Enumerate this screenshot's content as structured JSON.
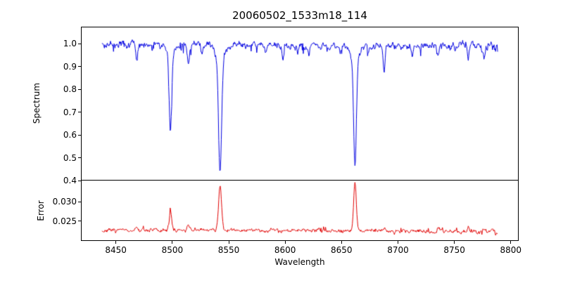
{
  "chart_data": [
    {
      "type": "line",
      "panel": "spectrum",
      "title": "20060502_1533m18_114",
      "ylabel": "Spectrum",
      "color": "#0000e0",
      "xlim": [
        8419,
        8807
      ],
      "ylim": [
        0.4,
        1.074
      ],
      "yticks": [
        1.0,
        0.9,
        0.8,
        0.7,
        0.6,
        0.5,
        0.4
      ],
      "ytick_labels": [
        "1.0",
        "0.9",
        "0.8",
        "0.7",
        "0.6",
        "0.5",
        "0.4"
      ],
      "x_start": 8437,
      "x_end": 8789,
      "x_step": 0.45,
      "continuum": 0.995,
      "noise_sigma": 0.0065,
      "grid": false,
      "legend": false,
      "absorption_lines": [
        {
          "center": 8498.0,
          "depth": 0.33,
          "width": 1.1
        },
        {
          "center": 8498.0,
          "depth": 0.05,
          "width": 3.2
        },
        {
          "center": 8542.1,
          "depth": 0.5,
          "width": 1.3
        },
        {
          "center": 8542.1,
          "depth": 0.07,
          "width": 4.0
        },
        {
          "center": 8662.1,
          "depth": 0.47,
          "width": 1.2
        },
        {
          "center": 8662.1,
          "depth": 0.06,
          "width": 3.6
        },
        {
          "center": 8433,
          "depth": 0.035,
          "width": 0.8
        },
        {
          "center": 8468,
          "depth": 0.07,
          "width": 0.9
        },
        {
          "center": 8482,
          "depth": 0.035,
          "width": 0.7
        },
        {
          "center": 8514,
          "depth": 0.095,
          "width": 1.0
        },
        {
          "center": 8526,
          "depth": 0.045,
          "width": 0.8
        },
        {
          "center": 8583,
          "depth": 0.035,
          "width": 0.7
        },
        {
          "center": 8598,
          "depth": 0.045,
          "width": 0.8
        },
        {
          "center": 8611,
          "depth": 0.03,
          "width": 0.7
        },
        {
          "center": 8621,
          "depth": 0.035,
          "width": 0.7
        },
        {
          "center": 8649,
          "depth": 0.03,
          "width": 0.7
        },
        {
          "center": 8674,
          "depth": 0.03,
          "width": 0.7
        },
        {
          "center": 8688,
          "depth": 0.105,
          "width": 1.0
        },
        {
          "center": 8713,
          "depth": 0.05,
          "width": 0.8
        },
        {
          "center": 8736,
          "depth": 0.055,
          "width": 0.8
        },
        {
          "center": 8751,
          "depth": 0.04,
          "width": 0.7
        },
        {
          "center": 8763,
          "depth": 0.06,
          "width": 0.8
        },
        {
          "center": 8777,
          "depth": 0.05,
          "width": 0.8
        }
      ]
    },
    {
      "type": "line",
      "panel": "error",
      "ylabel": "Error",
      "xlabel": "Wavelength",
      "color": "#e00000",
      "xlim": [
        8419,
        8807
      ],
      "ylim": [
        0.0198,
        0.0356
      ],
      "yticks": [
        0.03,
        0.025
      ],
      "ytick_labels": [
        "0.030",
        "0.025"
      ],
      "xticks": [
        8450,
        8500,
        8550,
        8600,
        8650,
        8700,
        8750,
        8800
      ],
      "xtick_labels": [
        "8450",
        "8500",
        "8550",
        "8600",
        "8650",
        "8700",
        "8750",
        "8800"
      ],
      "x_start": 8437,
      "x_end": 8789,
      "x_step": 0.45,
      "baseline": 0.0223,
      "noise_sigma": 0.00022,
      "grid": false,
      "legend": false,
      "peaks": [
        {
          "center": 8433,
          "height": 0.0013,
          "width": 0.9
        },
        {
          "center": 8468,
          "height": 0.0008,
          "width": 0.9
        },
        {
          "center": 8498.0,
          "height": 0.005,
          "width": 1.1
        },
        {
          "center": 8514,
          "height": 0.001,
          "width": 1.0
        },
        {
          "center": 8542.1,
          "height": 0.0122,
          "width": 1.3
        },
        {
          "center": 8662.1,
          "height": 0.0128,
          "width": 1.2
        },
        {
          "center": 8688,
          "height": 0.0009,
          "width": 1.0
        },
        {
          "center": 8713,
          "height": 0.0006,
          "width": 0.8
        },
        {
          "center": 8736,
          "height": 0.0007,
          "width": 0.8
        },
        {
          "center": 8763,
          "height": 0.0011,
          "width": 0.8
        },
        {
          "center": 8777,
          "height": 0.0008,
          "width": 0.8
        }
      ]
    }
  ]
}
